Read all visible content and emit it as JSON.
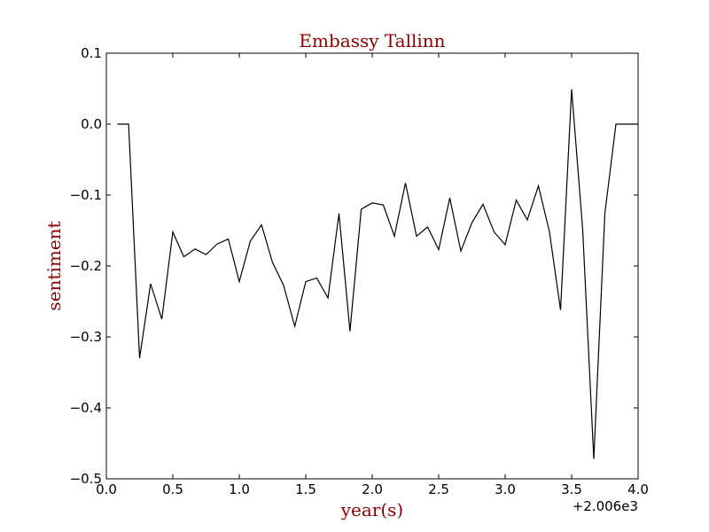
{
  "chart_data": {
    "type": "line",
    "title": "Embassy Tallinn",
    "xlabel": "year(s)",
    "ylabel": "sentiment",
    "x_offset_label": "+2.006e3",
    "xlim": [
      0.0,
      4.0
    ],
    "ylim": [
      -0.5,
      0.1
    ],
    "x_ticks": [
      0.0,
      0.5,
      1.0,
      1.5,
      2.0,
      2.5,
      3.0,
      3.5,
      4.0
    ],
    "x_tick_labels": [
      "0.0",
      "0.5",
      "1.0",
      "1.5",
      "2.0",
      "2.5",
      "3.0",
      "3.5",
      "4.0"
    ],
    "y_ticks": [
      0.1,
      0.0,
      -0.1,
      -0.2,
      -0.3,
      -0.4,
      -0.5
    ],
    "y_tick_labels": [
      "0.1",
      "0.0",
      "−0.1",
      "−0.2",
      "−0.3",
      "−0.4",
      "−0.5"
    ],
    "grid": false,
    "colors": {
      "line": "#000000",
      "title": "#8b0000",
      "axis_label": "#8b0000"
    },
    "series": [
      {
        "x": [
          0.083,
          0.167,
          0.25,
          0.333,
          0.417,
          0.5,
          0.583,
          0.667,
          0.75,
          0.833,
          0.917,
          1.0,
          1.083,
          1.167,
          1.25,
          1.333,
          1.417,
          1.5,
          1.583,
          1.667,
          1.75,
          1.833,
          1.917,
          2.0,
          2.083,
          2.167,
          2.25,
          2.333,
          2.417,
          2.5,
          2.583,
          2.667,
          2.75,
          2.833,
          2.917,
          3.0,
          3.083,
          3.167,
          3.25,
          3.333,
          3.417,
          3.5,
          3.583,
          3.667,
          3.75,
          3.833,
          3.917,
          4.0
        ],
        "values": [
          0.0,
          0.0,
          -0.33,
          -0.225,
          -0.275,
          -0.152,
          -0.187,
          -0.176,
          -0.184,
          -0.169,
          -0.162,
          -0.222,
          -0.165,
          -0.142,
          -0.195,
          -0.227,
          -0.285,
          -0.222,
          -0.217,
          -0.245,
          -0.126,
          -0.292,
          -0.12,
          -0.111,
          -0.114,
          -0.158,
          -0.083,
          -0.158,
          -0.145,
          -0.177,
          -0.104,
          -0.179,
          -0.139,
          -0.113,
          -0.152,
          -0.17,
          -0.107,
          -0.135,
          -0.087,
          -0.152,
          -0.262,
          0.049,
          -0.149,
          -0.472,
          -0.126,
          0.0,
          0.0,
          0.0
        ]
      }
    ]
  }
}
